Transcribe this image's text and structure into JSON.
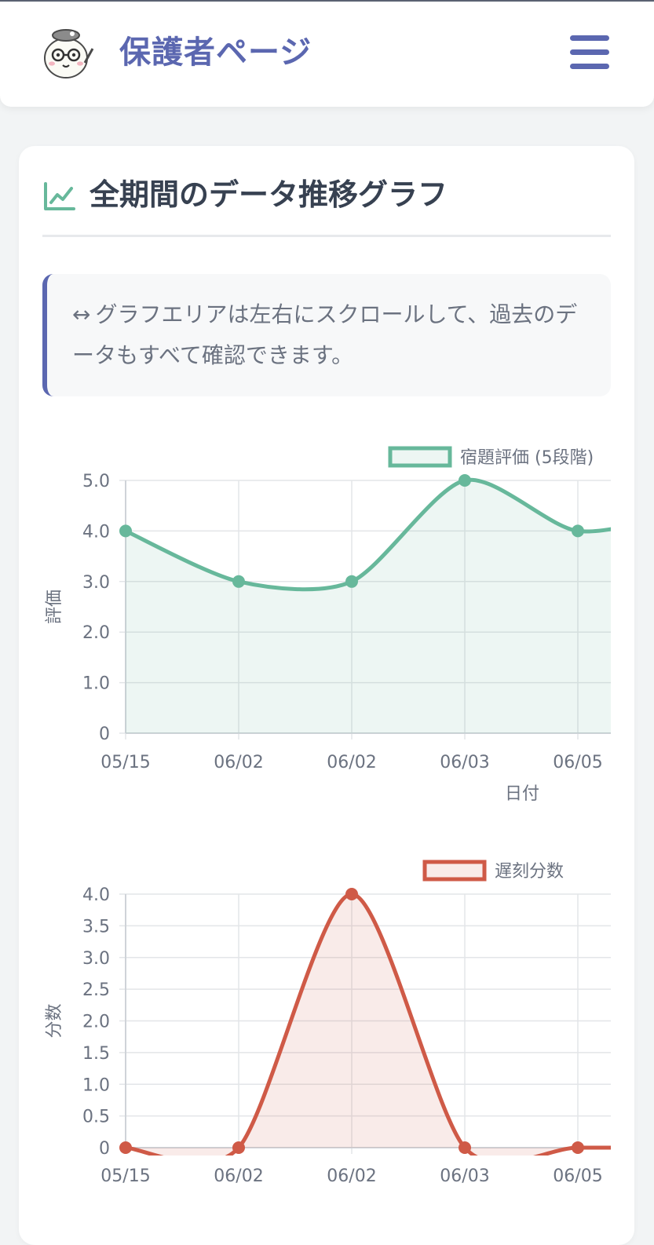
{
  "header": {
    "title": "保護者ページ",
    "logo_icon": "mascot-avatar-icon",
    "menu_icon": "hamburger-menu-icon"
  },
  "card": {
    "title": "全期間のデータ推移グラフ",
    "title_icon": "line-chart-icon",
    "info_arrow": "↔",
    "info_text": "グラフエリアは左右にスクロールして、過去のデータもすべて確認できます。"
  },
  "colors": {
    "accent": "#5b67b0",
    "homework": "#67b89b",
    "late": "#cf5a47"
  },
  "chart_data": [
    {
      "type": "area",
      "categories": [
        "05/15",
        "06/02",
        "06/02",
        "06/03",
        "06/05"
      ],
      "series": [
        {
          "name": "宿題評価 (5段階)",
          "values": [
            4,
            3,
            3,
            5,
            4
          ]
        }
      ],
      "ylabel": "評価",
      "xlabel": "日付",
      "yticks": [
        "0",
        "1.0",
        "2.0",
        "3.0",
        "4.0",
        "5.0"
      ],
      "ylim": [
        0,
        5
      ],
      "grid": true,
      "legend": "top-right",
      "color": "#67b89b"
    },
    {
      "type": "area",
      "categories": [
        "05/15",
        "06/02",
        "06/02",
        "06/03",
        "06/05"
      ],
      "series": [
        {
          "name": "遅刻分数",
          "values": [
            0,
            0,
            4,
            0,
            0
          ]
        }
      ],
      "ylabel": "分数",
      "yticks": [
        "0",
        "0.5",
        "1.0",
        "1.5",
        "2.0",
        "2.5",
        "3.0",
        "3.5",
        "4.0"
      ],
      "ylim": [
        0,
        4
      ],
      "grid": true,
      "legend": "top-right",
      "color": "#cf5a47"
    }
  ]
}
